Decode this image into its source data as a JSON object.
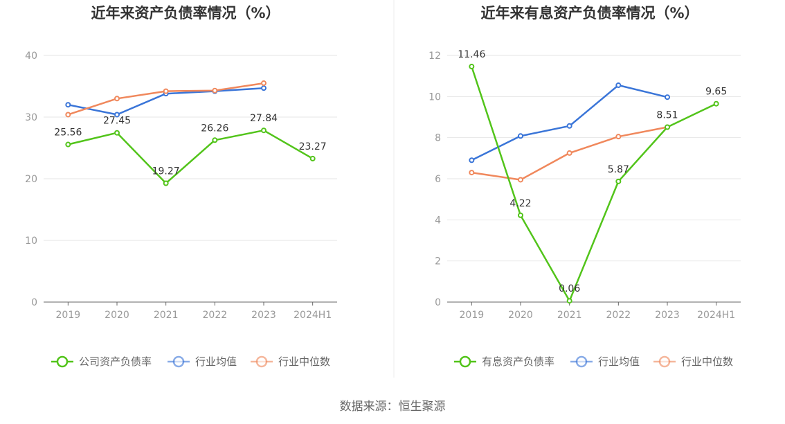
{
  "source_label": "数据来源：恒生聚源",
  "chart_data": [
    {
      "type": "line",
      "title": "近年来资产负债率情况（%）",
      "categories": [
        "2019",
        "2020",
        "2021",
        "2022",
        "2023",
        "2024H1"
      ],
      "ylim": [
        0,
        40
      ],
      "yticks": [
        0,
        10,
        20,
        30,
        40
      ],
      "grid": true,
      "legend_position": "bottom",
      "series": [
        {
          "name": "公司资产负债率",
          "color": "#52c41a",
          "values": [
            25.56,
            27.45,
            19.27,
            26.26,
            27.84,
            23.27
          ],
          "labels": [
            "25.56",
            "27.45",
            "19.27",
            "26.26",
            "27.84",
            "23.27"
          ],
          "show_labels": true
        },
        {
          "name": "行业均值",
          "color": "#3a75d8",
          "values": [
            32.0,
            30.4,
            33.8,
            34.2,
            34.7,
            null
          ],
          "show_labels": false
        },
        {
          "name": "行业中位数",
          "color": "#f0885c",
          "values": [
            30.4,
            33.0,
            34.2,
            34.3,
            35.5,
            null
          ],
          "show_labels": false
        }
      ]
    },
    {
      "type": "line",
      "title": "近年来有息资产负债率情况（%）",
      "categories": [
        "2019",
        "2020",
        "2021",
        "2022",
        "2023",
        "2024H1"
      ],
      "ylim": [
        0,
        12
      ],
      "yticks": [
        0,
        2,
        4,
        6,
        8,
        10,
        12
      ],
      "grid": true,
      "legend_position": "bottom",
      "series": [
        {
          "name": "有息资产负债率",
          "color": "#52c41a",
          "values": [
            11.46,
            4.22,
            0.06,
            5.87,
            8.51,
            9.65
          ],
          "labels": [
            "11.46",
            "4.22",
            "0.06",
            "5.87",
            "8.51",
            "9.65"
          ],
          "show_labels": true
        },
        {
          "name": "行业均值",
          "color": "#3a75d8",
          "values": [
            6.9,
            8.08,
            8.57,
            10.55,
            9.97,
            null
          ],
          "show_labels": false
        },
        {
          "name": "行业中位数",
          "color": "#f0885c",
          "values": [
            6.3,
            5.95,
            7.25,
            8.05,
            8.51,
            null
          ],
          "show_labels": false
        }
      ]
    }
  ]
}
